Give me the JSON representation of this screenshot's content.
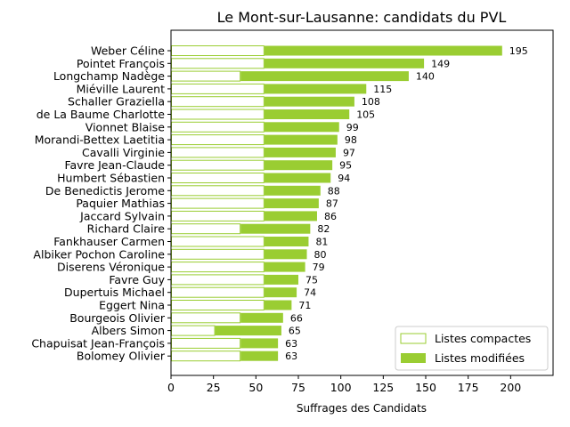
{
  "chart_data": {
    "type": "bar",
    "orientation": "horizontal",
    "stacked": true,
    "title": "Le Mont-sur-Lausanne: candidats du PVL",
    "xlabel": "Suffrages des Candidats",
    "ylabel": "",
    "xlim": [
      0,
      225
    ],
    "xticks": [
      0,
      25,
      50,
      75,
      100,
      125,
      150,
      175,
      200
    ],
    "grid": false,
    "legend_position": "lower-right",
    "categories": [
      "Weber Céline",
      "Pointet François",
      "Longchamp Nadège",
      "Miéville Laurent",
      "Schaller Graziella",
      "de La Baume Charlotte",
      "Vionnet Blaise",
      "Morandi-Bettex Laetitia",
      "Cavalli Virginie",
      "Favre Jean-Claude",
      "Humbert Sébastien",
      "De Benedictis Jerome",
      "Paquier Mathias",
      "Jaccard Sylvain",
      "Richard Claire",
      "Fankhauser Carmen",
      "Albiker Pochon Caroline",
      "Diserens Véronique",
      "Favre Guy",
      "Dupertuis Michael",
      "Eggert Nina",
      "Bourgeois Olivier",
      "Albers Simon",
      "Chapuisat Jean-François",
      "Bolomey Olivier"
    ],
    "series": [
      {
        "name": "Listes compactes",
        "color": "#9acd32",
        "style": "outline",
        "values": [
          55,
          55,
          41,
          55,
          55,
          55,
          55,
          55,
          55,
          55,
          55,
          55,
          55,
          55,
          41,
          55,
          55,
          55,
          55,
          55,
          55,
          41,
          26,
          41,
          41
        ]
      },
      {
        "name": "Listes modifiées",
        "color": "#9acd32",
        "style": "filled",
        "values": [
          140,
          94,
          99,
          60,
          53,
          50,
          44,
          43,
          42,
          40,
          39,
          33,
          32,
          31,
          41,
          26,
          25,
          24,
          20,
          19,
          16,
          25,
          39,
          22,
          22
        ]
      }
    ],
    "totals": [
      195,
      149,
      140,
      115,
      108,
      105,
      99,
      98,
      97,
      95,
      94,
      88,
      87,
      86,
      82,
      81,
      80,
      79,
      75,
      74,
      71,
      66,
      65,
      63,
      63
    ]
  }
}
